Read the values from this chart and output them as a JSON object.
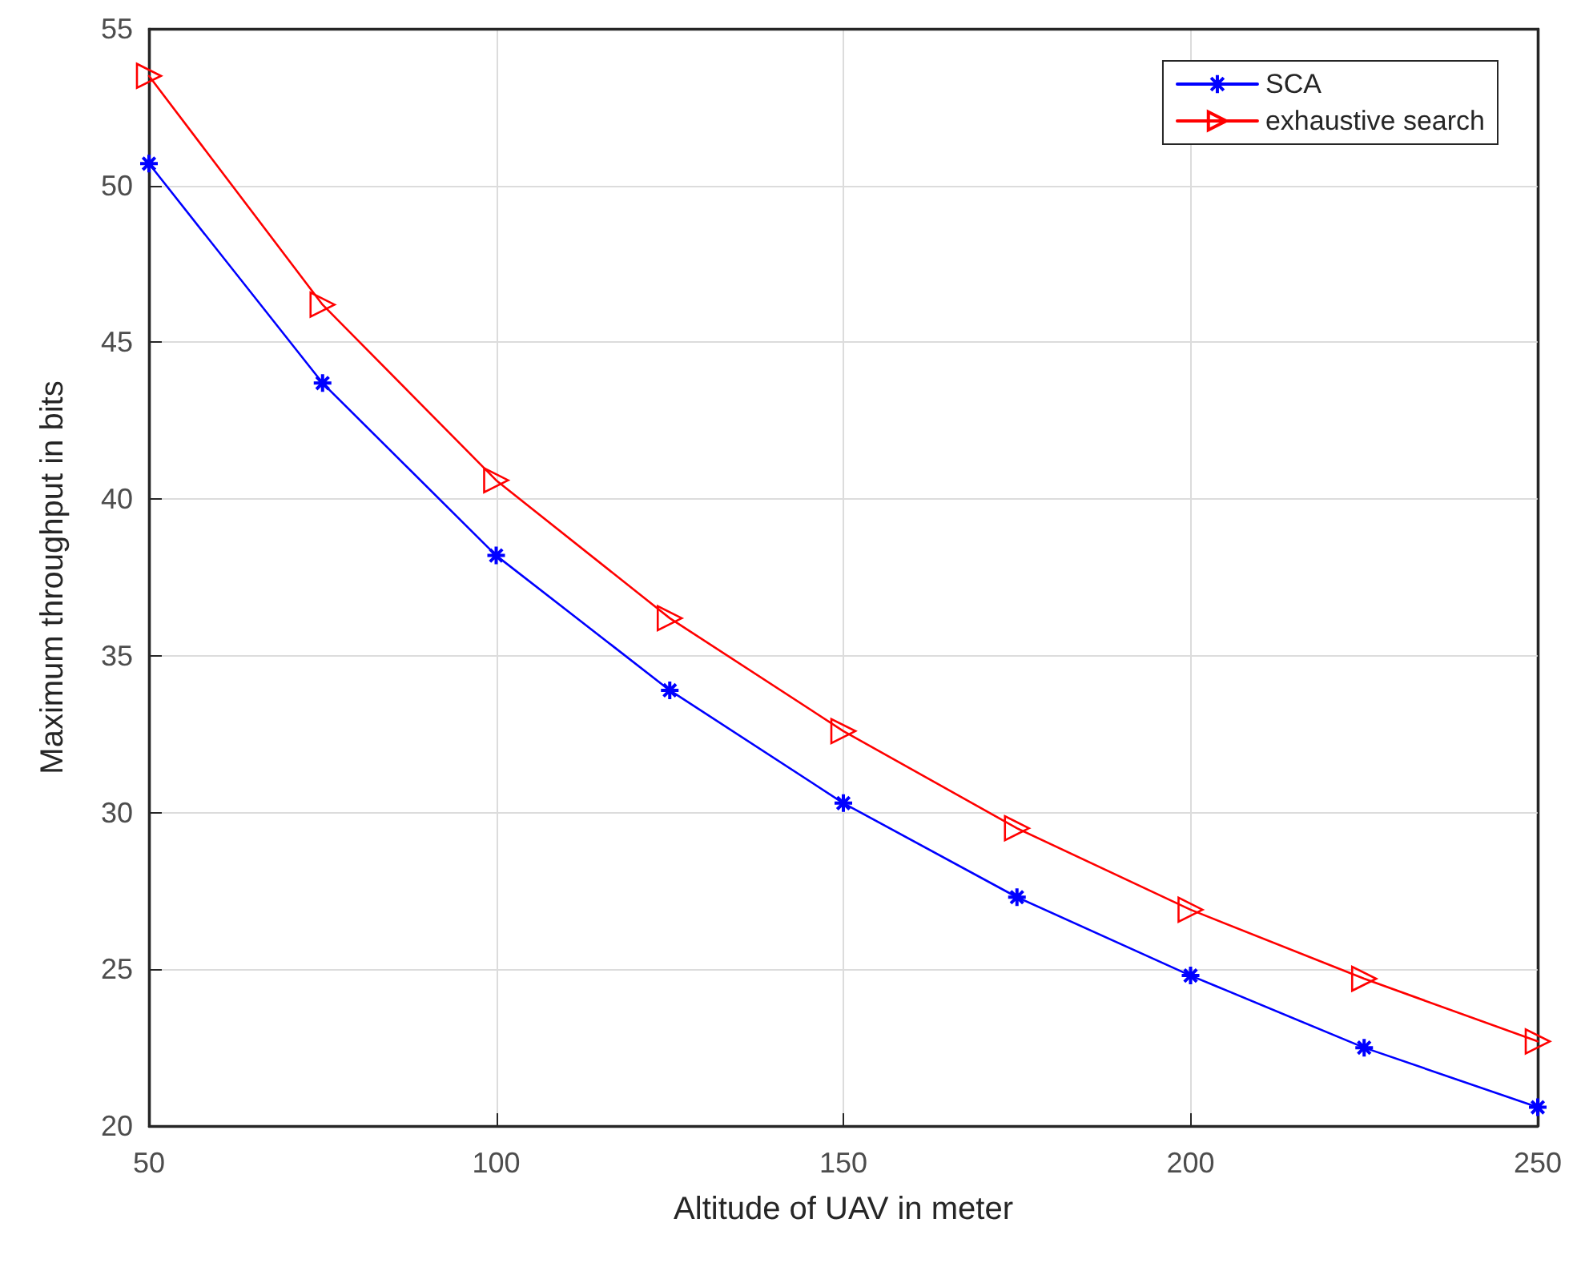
{
  "chart_data": {
    "type": "line",
    "xlabel": "Altitude of UAV in meter",
    "ylabel": "Maximum throughput in bits",
    "x": [
      50,
      75,
      100,
      125,
      150,
      175,
      200,
      225,
      250
    ],
    "series": [
      {
        "name": "SCA",
        "color": "#0000ff",
        "marker": "cross",
        "values": [
          50.7,
          43.7,
          38.2,
          33.9,
          30.3,
          27.3,
          24.8,
          22.5,
          20.6
        ]
      },
      {
        "name": "exhaustive search",
        "color": "#ff0000",
        "marker": "triangle",
        "values": [
          53.5,
          46.2,
          40.6,
          36.2,
          32.6,
          29.5,
          26.9,
          24.7,
          22.7
        ]
      }
    ],
    "xlim": [
      50,
      250
    ],
    "xticks": [
      50,
      100,
      150,
      200,
      250
    ],
    "ylim": [
      20,
      55
    ],
    "yticks": [
      20,
      25,
      30,
      35,
      40,
      45,
      50,
      55
    ],
    "grid": true,
    "legend": "top right",
    "line_style": "solid"
  }
}
